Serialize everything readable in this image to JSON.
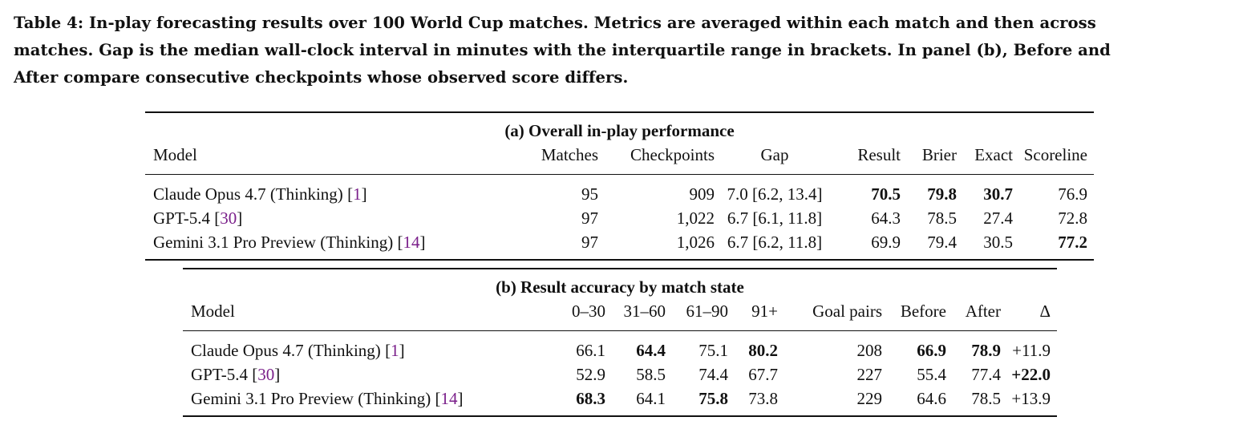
{
  "caption": {
    "line1": "Table 4: In-play forecasting results over 100 World Cup matches. Metrics are averaged within each match and then across",
    "line2": "matches. Gap is the median wall-clock interval in minutes with the interquartile range in brackets. In panel (b), Before and",
    "line3": "After compare consecutive checkpoints whose observed score differs."
  },
  "panel_a": {
    "title": "(a) Overall in-play performance",
    "headers": [
      "Model",
      "Matches",
      "Checkpoints",
      "Gap",
      "Result",
      "Brier",
      "Exact",
      "Scoreline"
    ],
    "rows": [
      {
        "model": "Claude Opus 4.7 (Thinking) ",
        "ref": "1",
        "matches": "95",
        "checkpoints": "909",
        "gap": "7.0 [6.2, 13.4]",
        "result": "70.5",
        "brier": "79.8",
        "exact": "30.7",
        "scoreline": "76.9"
      },
      {
        "model": "GPT-5.4 ",
        "ref": "30",
        "matches": "97",
        "checkpoints": "1,022",
        "gap": "6.7 [6.1, 11.8]",
        "result": "64.3",
        "brier": "78.5",
        "exact": "27.4",
        "scoreline": "72.8"
      },
      {
        "model": "Gemini 3.1 Pro Preview (Thinking) ",
        "ref": "14",
        "matches": "97",
        "checkpoints": "1,026",
        "gap": "6.7 [6.2, 11.8]",
        "result": "69.9",
        "brier": "79.4",
        "exact": "30.5",
        "scoreline": "77.2"
      }
    ]
  },
  "panel_b": {
    "title": "(b) Result accuracy by match state",
    "headers": [
      "Model",
      "0–30",
      "31–60",
      "61–90",
      "91+",
      "Goal pairs",
      "Before",
      "After",
      "Δ"
    ],
    "rows": [
      {
        "model": "Claude Opus 4.7 (Thinking) ",
        "ref": "1",
        "m0_30": "66.1",
        "m31_60": "64.4",
        "m61_90": "75.1",
        "m91": "80.2",
        "pairs": "208",
        "before": "66.9",
        "after": "78.9",
        "delta": "+11.9"
      },
      {
        "model": "GPT-5.4 ",
        "ref": "30",
        "m0_30": "52.9",
        "m31_60": "58.5",
        "m61_90": "74.4",
        "m91": "67.7",
        "pairs": "227",
        "before": "55.4",
        "after": "77.4",
        "delta": "+22.0"
      },
      {
        "model": "Gemini 3.1 Pro Preview (Thinking) ",
        "ref": "14",
        "m0_30": "68.3",
        "m31_60": "64.1",
        "m61_90": "75.8",
        "m91": "73.8",
        "pairs": "229",
        "before": "64.6",
        "after": "78.5",
        "delta": "+13.9"
      }
    ]
  },
  "colors": {
    "citation": "#7a1f8a",
    "text": "#111111"
  }
}
